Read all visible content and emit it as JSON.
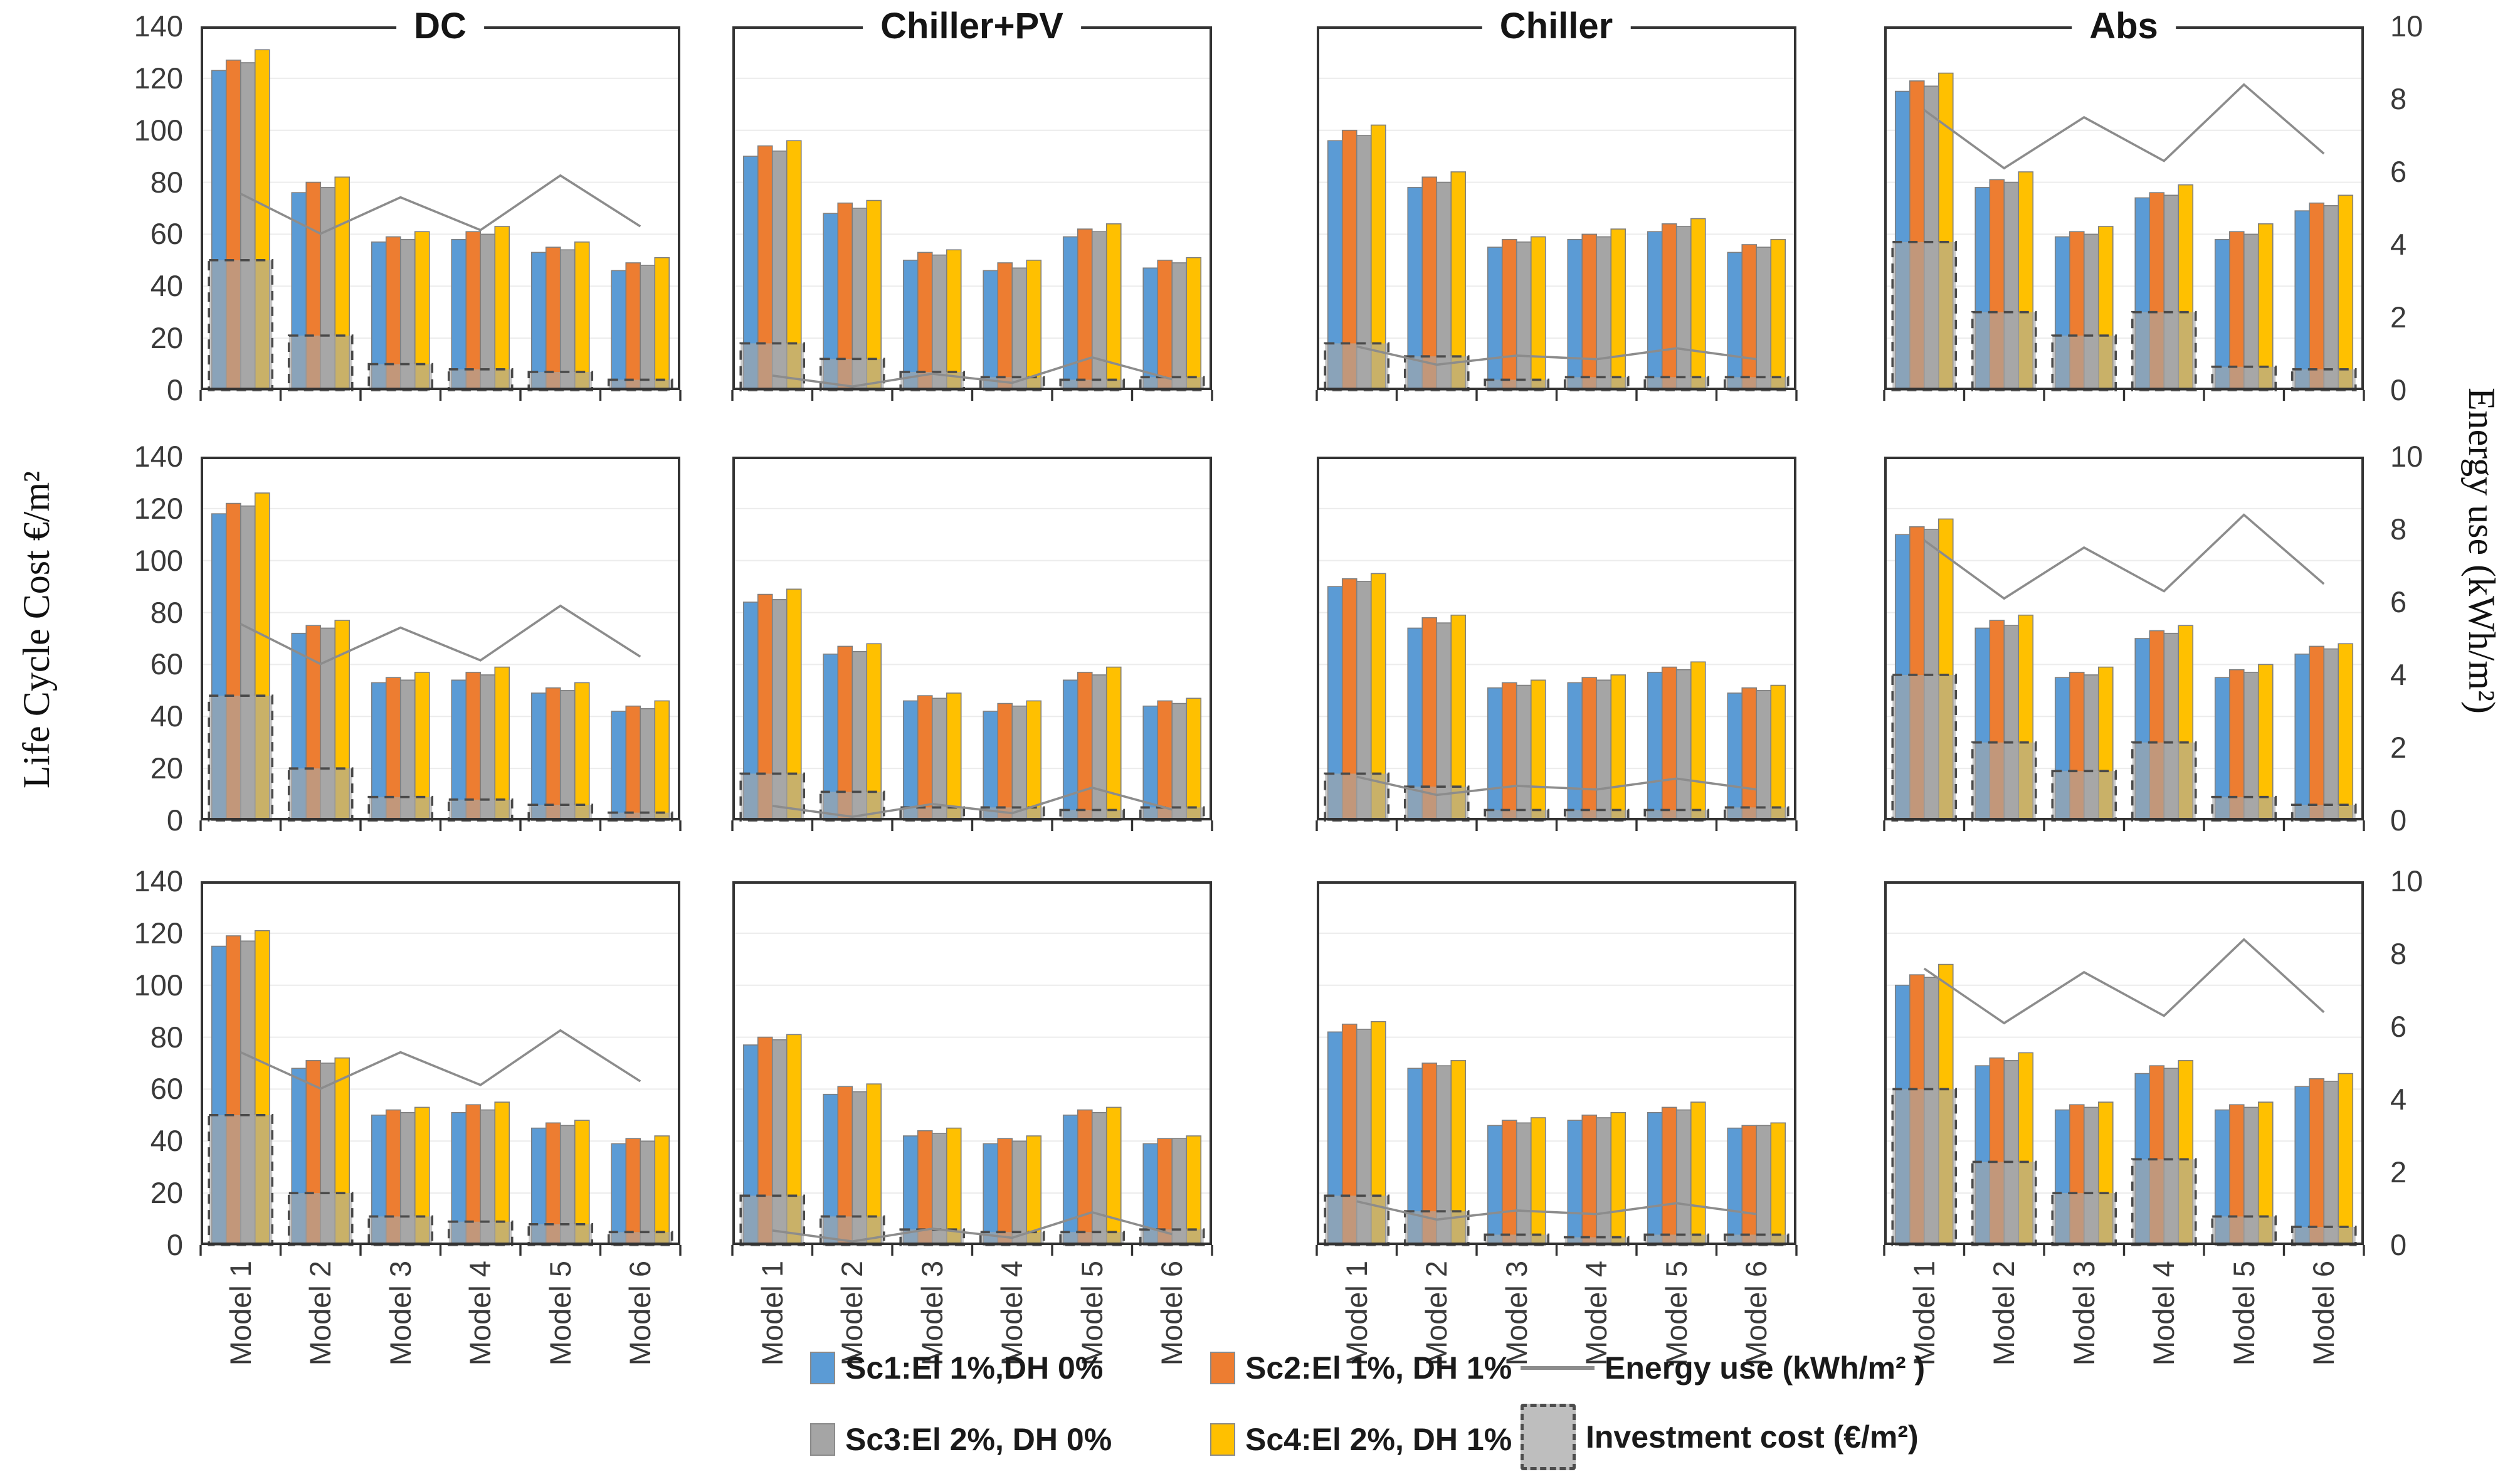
{
  "chart_data": {
    "type": "bar",
    "description": "3x4 grid of grouped bar charts with secondary-axis line series",
    "columns": [
      "DC",
      "Chiller+PV",
      "Chiller",
      "Abs"
    ],
    "row_count": 3,
    "categories": [
      "Model 1",
      "Model 2",
      "Model 3",
      "Model 4",
      "Model 5",
      "Model 6"
    ],
    "left_axis": {
      "label": "Life Cycle Cost €/m²",
      "min": 0,
      "max": 140,
      "tick_step": 20,
      "ticks": [
        140,
        120,
        100,
        80,
        60,
        40,
        20,
        0
      ]
    },
    "right_axis": {
      "label": "Energy use  (kWh/m²)",
      "min": 0,
      "max": 10,
      "tick_step": 2,
      "ticks": [
        10,
        8,
        6,
        4,
        2,
        0
      ]
    },
    "grid": true,
    "legend": {
      "position": "bottom",
      "series": [
        {
          "label": "Sc1:El 1%,DH 0%",
          "color": "#5B9BD5"
        },
        {
          "label": "Sc2:El 1%, DH 1%",
          "color": "#ED7D31"
        },
        {
          "label": "Sc3:El 2%, DH 0%",
          "color": "#A5A5A5"
        },
        {
          "label": "Sc4:El 2%, DH 1%",
          "color": "#FFC000"
        }
      ],
      "line": {
        "label": "Energy use (kWh/m² )",
        "color": "#8c8c8c"
      },
      "investment": {
        "label": "Investment cost (€/m²)",
        "fill": "#A8A8A8",
        "border": "#4d4d4d"
      }
    },
    "colors": {
      "sc1": "#5B9BD5",
      "sc2": "#ED7D31",
      "sc3": "#A5A5A5",
      "sc4": "#FFC000",
      "energy_line": "#8c8c8c",
      "bar_stroke": "#7F7F7F",
      "investment_fill": "#A8A8A8",
      "investment_border": "#4A4A4A",
      "plot_border": "#333333",
      "gridline": "#ECECEC"
    },
    "panels": [
      {
        "row": 1,
        "column": "DC",
        "series": [
          {
            "name": "Sc1:El 1%,DH 0%",
            "values": [
              123,
              76,
              57,
              58,
              53,
              46
            ]
          },
          {
            "name": "Sc2:El 1%, DH 1%",
            "values": [
              127,
              80,
              59,
              61,
              55,
              49
            ]
          },
          {
            "name": "Sc3:El 2%, DH 0%",
            "values": [
              126,
              78,
              58,
              60,
              54,
              48
            ]
          },
          {
            "name": "Sc4:El 2%, DH 1%",
            "values": [
              131,
              82,
              61,
              63,
              57,
              51
            ]
          }
        ],
        "investment_cost": [
          50,
          21,
          10,
          8,
          7,
          4
        ],
        "energy_use": [
          5.4,
          4.3,
          5.3,
          4.4,
          5.9,
          4.5
        ]
      },
      {
        "row": 1,
        "column": "Chiller+PV",
        "series": [
          {
            "name": "Sc1:El 1%,DH 0%",
            "values": [
              90,
              68,
              50,
              46,
              59,
              47
            ]
          },
          {
            "name": "Sc2:El 1%, DH 1%",
            "values": [
              94,
              72,
              53,
              49,
              62,
              50
            ]
          },
          {
            "name": "Sc3:El 2%, DH 0%",
            "values": [
              92,
              70,
              52,
              47,
              61,
              49
            ]
          },
          {
            "name": "Sc4:El 2%, DH 1%",
            "values": [
              96,
              73,
              54,
              50,
              64,
              51
            ]
          }
        ],
        "investment_cost": [
          18,
          12,
          7,
          5,
          4,
          5
        ],
        "energy_use": [
          0.4,
          0.1,
          0.45,
          0.2,
          0.9,
          0.3
        ]
      },
      {
        "row": 1,
        "column": "Chiller",
        "series": [
          {
            "name": "Sc1:El 1%,DH 0%",
            "values": [
              96,
              78,
              55,
              58,
              61,
              53
            ]
          },
          {
            "name": "Sc2:El 1%, DH 1%",
            "values": [
              100,
              82,
              58,
              60,
              64,
              56
            ]
          },
          {
            "name": "Sc3:El 2%, DH 0%",
            "values": [
              98,
              80,
              57,
              59,
              63,
              55
            ]
          },
          {
            "name": "Sc4:El 2%, DH 1%",
            "values": [
              102,
              84,
              59,
              62,
              66,
              58
            ]
          }
        ],
        "investment_cost": [
          18,
          13,
          4,
          5,
          5,
          5
        ],
        "energy_use": [
          1.2,
          0.7,
          0.95,
          0.85,
          1.15,
          0.85
        ]
      },
      {
        "row": 1,
        "column": "Abs",
        "series": [
          {
            "name": "Sc1:El 1%,DH 0%",
            "values": [
              115,
              78,
              59,
              74,
              58,
              69
            ]
          },
          {
            "name": "Sc2:El 1%, DH 1%",
            "values": [
              119,
              81,
              61,
              76,
              61,
              72
            ]
          },
          {
            "name": "Sc3:El 2%, DH 0%",
            "values": [
              117,
              80,
              60,
              75,
              60,
              71
            ]
          },
          {
            "name": "Sc4:El 2%, DH 1%",
            "values": [
              122,
              84,
              63,
              79,
              64,
              75
            ]
          }
        ],
        "investment_cost": [
          57,
          30,
          21,
          30,
          9,
          8
        ],
        "energy_use": [
          7.7,
          6.1,
          7.5,
          6.3,
          8.4,
          6.5
        ]
      },
      {
        "row": 2,
        "column": "DC",
        "series": [
          {
            "name": "Sc1:El 1%,DH 0%",
            "values": [
              118,
              72,
              53,
              54,
              49,
              42
            ]
          },
          {
            "name": "Sc2:El 1%, DH 1%",
            "values": [
              122,
              75,
              55,
              57,
              51,
              44
            ]
          },
          {
            "name": "Sc3:El 2%, DH 0%",
            "values": [
              121,
              74,
              54,
              56,
              50,
              43
            ]
          },
          {
            "name": "Sc4:El 2%, DH 1%",
            "values": [
              126,
              77,
              57,
              59,
              53,
              46
            ]
          }
        ],
        "investment_cost": [
          48,
          20,
          9,
          8,
          6,
          3
        ],
        "energy_use": [
          5.4,
          4.3,
          5.3,
          4.4,
          5.9,
          4.5
        ]
      },
      {
        "row": 2,
        "column": "Chiller+PV",
        "series": [
          {
            "name": "Sc1:El 1%,DH 0%",
            "values": [
              84,
              64,
              46,
              42,
              54,
              44
            ]
          },
          {
            "name": "Sc2:El 1%, DH 1%",
            "values": [
              87,
              67,
              48,
              45,
              57,
              46
            ]
          },
          {
            "name": "Sc3:El 2%, DH 0%",
            "values": [
              85,
              65,
              47,
              44,
              56,
              45
            ]
          },
          {
            "name": "Sc4:El 2%, DH 1%",
            "values": [
              89,
              68,
              49,
              46,
              59,
              47
            ]
          }
        ],
        "investment_cost": [
          18,
          11,
          5,
          5,
          4,
          5
        ],
        "energy_use": [
          0.4,
          0.1,
          0.45,
          0.2,
          0.9,
          0.3
        ]
      },
      {
        "row": 2,
        "column": "Chiller",
        "series": [
          {
            "name": "Sc1:El 1%,DH 0%",
            "values": [
              90,
              74,
              51,
              53,
              57,
              49
            ]
          },
          {
            "name": "Sc2:El 1%, DH 1%",
            "values": [
              93,
              78,
              53,
              55,
              59,
              51
            ]
          },
          {
            "name": "Sc3:El 2%, DH 0%",
            "values": [
              92,
              76,
              52,
              54,
              58,
              50
            ]
          },
          {
            "name": "Sc4:El 2%, DH 1%",
            "values": [
              95,
              79,
              54,
              56,
              61,
              52
            ]
          }
        ],
        "investment_cost": [
          18,
          13,
          4,
          4,
          4,
          5
        ],
        "energy_use": [
          1.2,
          0.7,
          0.95,
          0.85,
          1.15,
          0.85
        ]
      },
      {
        "row": 2,
        "column": "Abs",
        "series": [
          {
            "name": "Sc1:El 1%,DH 0%",
            "values": [
              110,
              74,
              55,
              70,
              55,
              64
            ]
          },
          {
            "name": "Sc2:El 1%, DH 1%",
            "values": [
              113,
              77,
              57,
              73,
              58,
              67
            ]
          },
          {
            "name": "Sc3:El 2%, DH 0%",
            "values": [
              112,
              75,
              56,
              72,
              57,
              66
            ]
          },
          {
            "name": "Sc4:El 2%, DH 1%",
            "values": [
              116,
              79,
              59,
              75,
              60,
              68
            ]
          }
        ],
        "investment_cost": [
          56,
          30,
          19,
          30,
          9,
          6
        ],
        "energy_use": [
          7.7,
          6.1,
          7.5,
          6.3,
          8.4,
          6.5
        ]
      },
      {
        "row": 3,
        "column": "DC",
        "series": [
          {
            "name": "Sc1:El 1%,DH 0%",
            "values": [
              115,
              68,
              50,
              51,
              45,
              39
            ]
          },
          {
            "name": "Sc2:El 1%, DH 1%",
            "values": [
              119,
              71,
              52,
              54,
              47,
              41
            ]
          },
          {
            "name": "Sc3:El 2%, DH 0%",
            "values": [
              117,
              70,
              51,
              52,
              46,
              40
            ]
          },
          {
            "name": "Sc4:El 2%, DH 1%",
            "values": [
              121,
              72,
              53,
              55,
              48,
              42
            ]
          }
        ],
        "investment_cost": [
          50,
          20,
          11,
          9,
          8,
          5
        ],
        "energy_use": [
          5.3,
          4.3,
          5.3,
          4.4,
          5.9,
          4.5
        ]
      },
      {
        "row": 3,
        "column": "Chiller+PV",
        "series": [
          {
            "name": "Sc1:El 1%,DH 0%",
            "values": [
              77,
              58,
              42,
              39,
              50,
              39
            ]
          },
          {
            "name": "Sc2:El 1%, DH 1%",
            "values": [
              80,
              61,
              44,
              41,
              52,
              41
            ]
          },
          {
            "name": "Sc3:El 2%, DH 0%",
            "values": [
              79,
              59,
              43,
              40,
              51,
              41
            ]
          },
          {
            "name": "Sc4:El 2%, DH 1%",
            "values": [
              81,
              62,
              45,
              42,
              53,
              42
            ]
          }
        ],
        "investment_cost": [
          19,
          11,
          6,
          5,
          5,
          6
        ],
        "energy_use": [
          0.4,
          0.1,
          0.45,
          0.2,
          0.9,
          0.3
        ]
      },
      {
        "row": 3,
        "column": "Chiller",
        "series": [
          {
            "name": "Sc1:El 1%,DH 0%",
            "values": [
              82,
              68,
              46,
              48,
              51,
              45
            ]
          },
          {
            "name": "Sc2:El 1%, DH 1%",
            "values": [
              85,
              70,
              48,
              50,
              53,
              46
            ]
          },
          {
            "name": "Sc3:El 2%, DH 0%",
            "values": [
              83,
              69,
              47,
              49,
              52,
              46
            ]
          },
          {
            "name": "Sc4:El 2%, DH 1%",
            "values": [
              86,
              71,
              49,
              51,
              55,
              47
            ]
          }
        ],
        "investment_cost": [
          19,
          13,
          4,
          3,
          4,
          4
        ],
        "energy_use": [
          1.2,
          0.7,
          0.95,
          0.85,
          1.15,
          0.85
        ]
      },
      {
        "row": 3,
        "column": "Abs",
        "series": [
          {
            "name": "Sc1:El 1%,DH 0%",
            "values": [
              100,
              69,
              52,
              66,
              52,
              61
            ]
          },
          {
            "name": "Sc2:El 1%, DH 1%",
            "values": [
              104,
              72,
              54,
              69,
              54,
              64
            ]
          },
          {
            "name": "Sc3:El 2%, DH 0%",
            "values": [
              103,
              71,
              53,
              68,
              53,
              63
            ]
          },
          {
            "name": "Sc4:El 2%, DH 1%",
            "values": [
              108,
              74,
              55,
              71,
              55,
              66
            ]
          }
        ],
        "investment_cost": [
          60,
          32,
          20,
          33,
          11,
          7
        ],
        "energy_use": [
          7.6,
          6.1,
          7.5,
          6.3,
          8.4,
          6.4
        ]
      }
    ]
  }
}
